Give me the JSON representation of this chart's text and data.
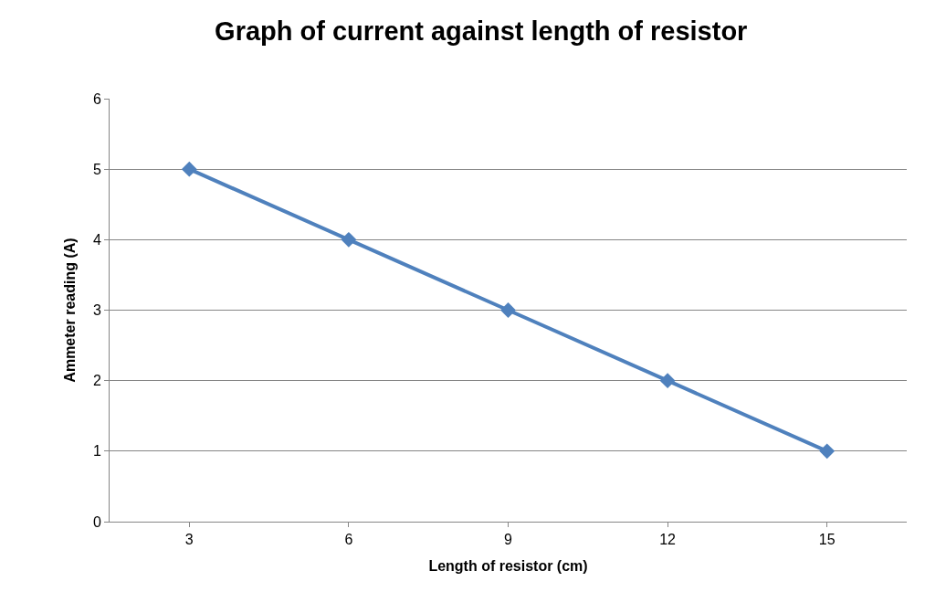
{
  "chart_data": {
    "type": "line",
    "title": "Graph of current against length of resistor",
    "xlabel": "Length of resistor (cm)",
    "ylabel": "Ammeter reading (A)",
    "categories": [
      "3",
      "6",
      "9",
      "12",
      "15"
    ],
    "series": [
      {
        "color": "#4f81bd",
        "values": [
          5,
          4,
          3,
          2,
          1
        ]
      }
    ],
    "ylim": [
      0,
      6
    ],
    "yticks": [
      0,
      1,
      2,
      3,
      4,
      5,
      6
    ],
    "grid": "y",
    "marker": "diamond",
    "line_style": "solid"
  }
}
